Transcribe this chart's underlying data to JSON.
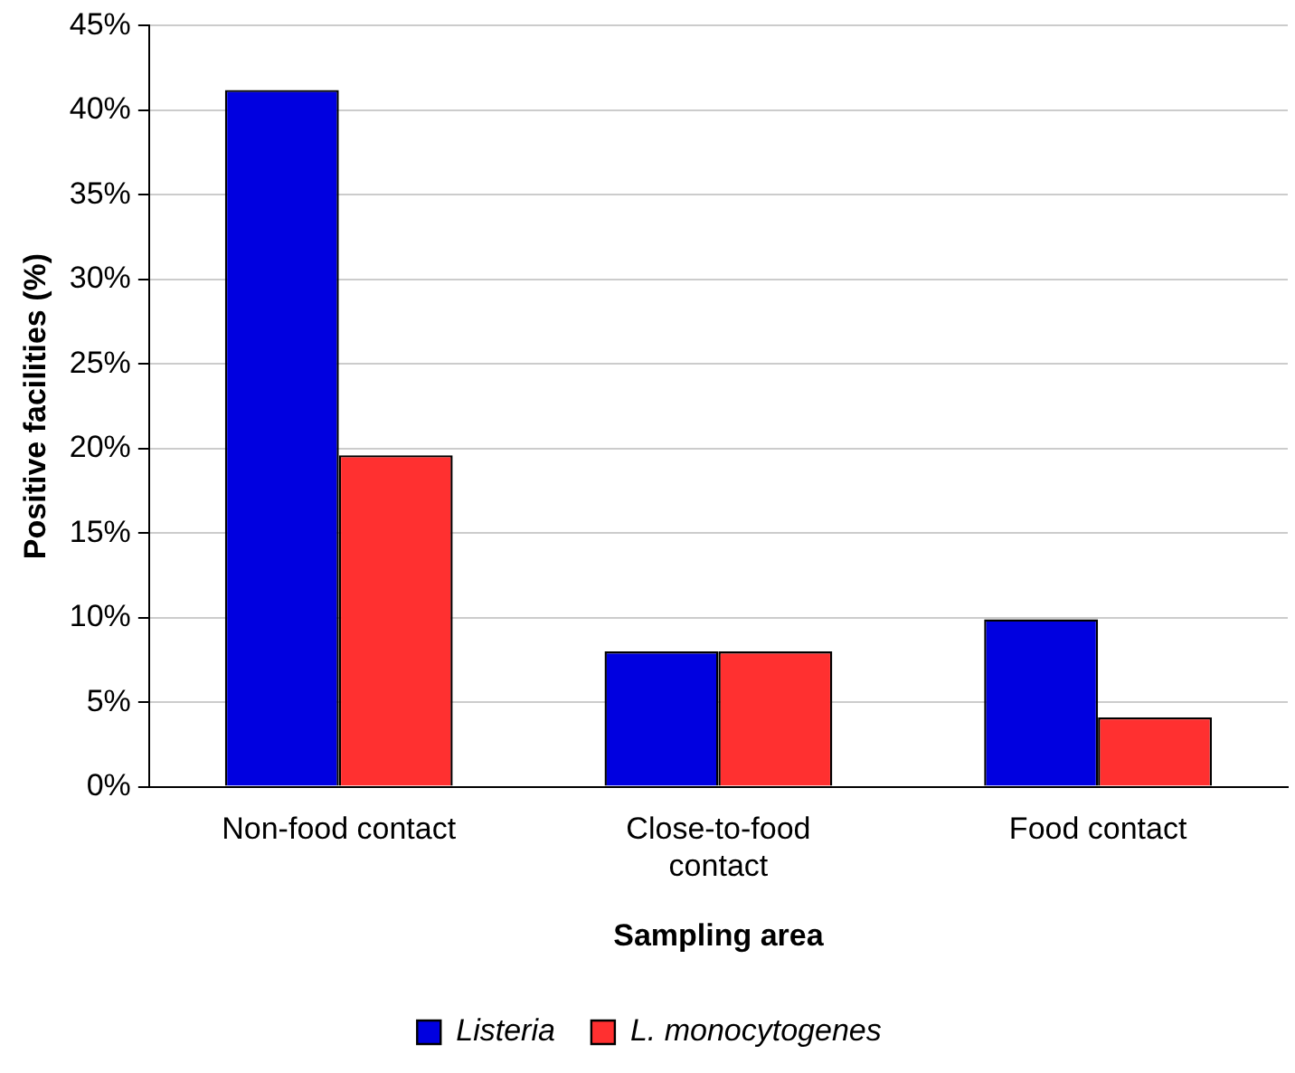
{
  "chart_data": {
    "type": "bar",
    "xlabel": "Sampling area",
    "ylabel": "Positive facilities (%)",
    "categories": [
      "Non-food contact",
      "Close-to-food contact",
      "Food contact"
    ],
    "series": [
      {
        "name": "Listeria",
        "color": "#0000e0",
        "values": [
          41.2,
          8.0,
          9.9
        ]
      },
      {
        "name": "L. monocytogenes",
        "color": "#ff3030",
        "values": [
          19.6,
          8.0,
          4.1
        ]
      }
    ],
    "ylim": [
      0,
      45
    ],
    "yticks": [
      {
        "value": 0,
        "label": "0%"
      },
      {
        "value": 5,
        "label": "5%"
      },
      {
        "value": 10,
        "label": "10%"
      },
      {
        "value": 15,
        "label": "15%"
      },
      {
        "value": 20,
        "label": "20%"
      },
      {
        "value": 25,
        "label": "25%"
      },
      {
        "value": 30,
        "label": "30%"
      },
      {
        "value": 35,
        "label": "35%"
      },
      {
        "value": 40,
        "label": "40%"
      },
      {
        "value": 45,
        "label": "45%"
      }
    ],
    "grid": "y",
    "legend": "bottom"
  }
}
